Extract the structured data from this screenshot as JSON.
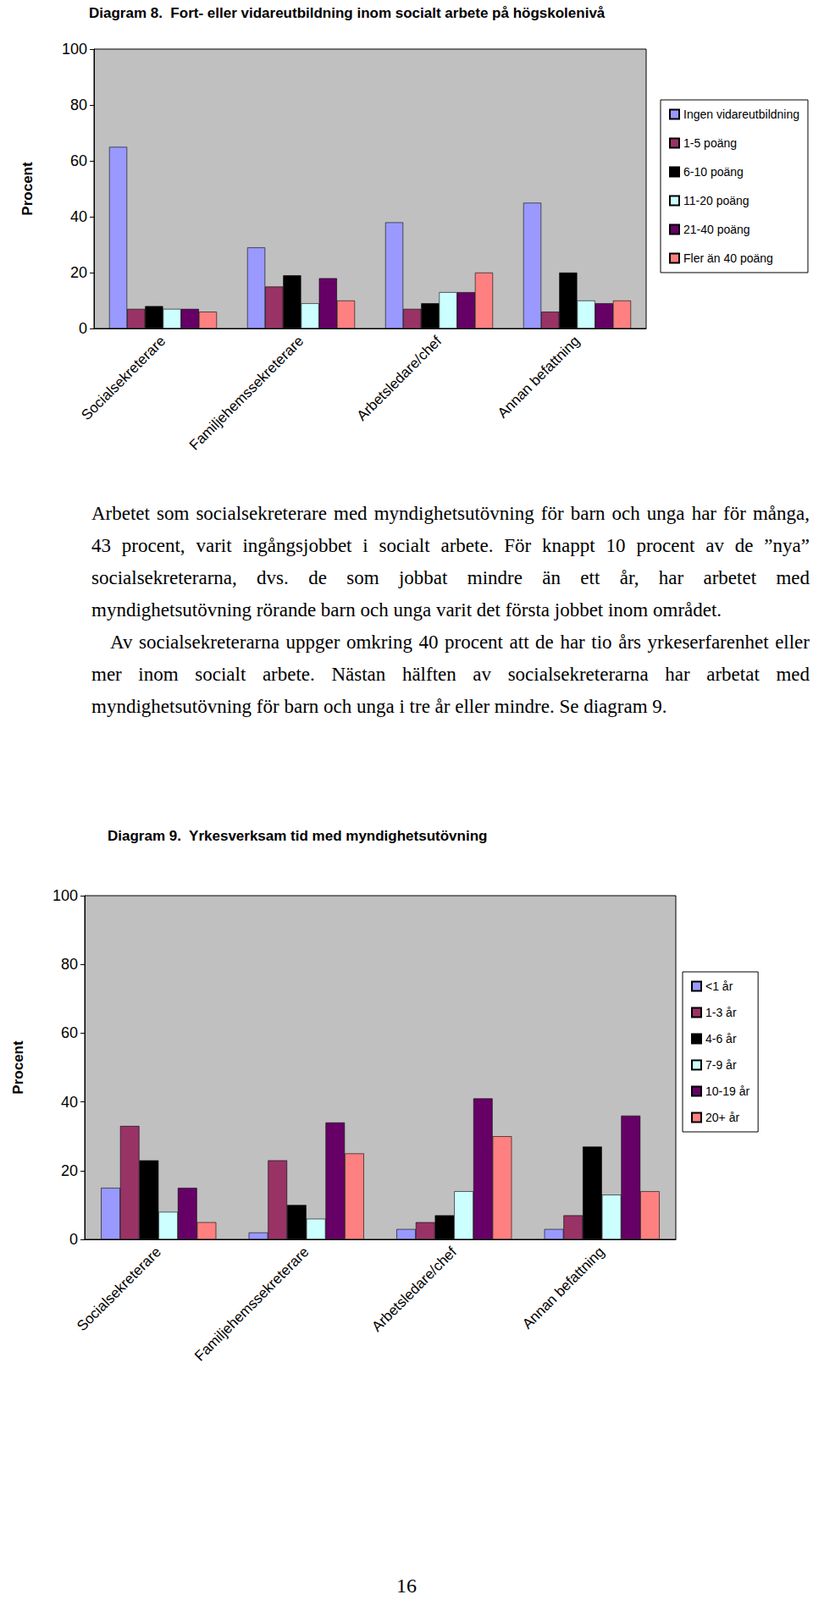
{
  "chart_data": [
    {
      "type": "bar",
      "title": "Diagram 8.  Fort- eller vidareutbildning inom socialt arbete på högskolenivå",
      "y_label": "Procent",
      "categories": [
        "Socialsekreterare",
        "Familjehemssekreterare",
        "Arbetsledare/chef",
        "Annan befattning"
      ],
      "series": [
        {
          "name": "Ingen vidareutbildning",
          "color": "#9999ff",
          "values": [
            65,
            29,
            38,
            45
          ]
        },
        {
          "name": "1-5 poäng",
          "color": "#993366",
          "values": [
            7,
            15,
            7,
            6
          ]
        },
        {
          "name": "6-10 poäng",
          "color": "#000000",
          "values": [
            8,
            19,
            9,
            20
          ]
        },
        {
          "name": "11-20 poäng",
          "color": "#ccffff",
          "values": [
            7,
            9,
            13,
            10
          ]
        },
        {
          "name": "21-40 poäng",
          "color": "#660066",
          "values": [
            7,
            18,
            13,
            9
          ]
        },
        {
          "name": "Fler än 40 poäng",
          "color": "#ff8080",
          "values": [
            6,
            10,
            20,
            10
          ]
        }
      ],
      "ylim": [
        0,
        100
      ],
      "yticks": [
        0,
        20,
        40,
        60,
        80,
        100
      ],
      "grid": false,
      "legend": "right"
    },
    {
      "type": "bar",
      "title": "Diagram 9.  Yrkesverksam tid med myndighetsutövning",
      "y_label": "Procent",
      "categories": [
        "Socialsekreterare",
        "Familjehemssekreterare",
        "Arbetsledare/chef",
        "Annan befattning"
      ],
      "series": [
        {
          "name": "<1 år",
          "color": "#9999ff",
          "values": [
            15,
            2,
            3,
            3
          ]
        },
        {
          "name": "1-3 år",
          "color": "#993366",
          "values": [
            33,
            23,
            5,
            7
          ]
        },
        {
          "name": "4-6 år",
          "color": "#000000",
          "values": [
            23,
            10,
            7,
            27
          ]
        },
        {
          "name": "7-9 år",
          "color": "#ccffff",
          "values": [
            8,
            6,
            14,
            13
          ]
        },
        {
          "name": "10-19 år",
          "color": "#660066",
          "values": [
            15,
            34,
            41,
            36
          ]
        },
        {
          "name": "20+ år",
          "color": "#ff8080",
          "values": [
            5,
            25,
            30,
            14
          ]
        }
      ],
      "ylim": [
        0,
        100
      ],
      "yticks": [
        0,
        20,
        40,
        60,
        80,
        100
      ],
      "grid": false,
      "legend": "right"
    }
  ],
  "paragraphs": [
    "Arbetet som socialsekreterare med myndighetsutövning för barn och unga har för många, 43 procent, varit ingångsjobbet i socialt arbete. För knappt 10 procent av de ”nya” socialsekreterarna, dvs. de som jobbat mindre än ett år, har arbetet med myndighetsutövning rörande barn och unga varit det första jobbet inom området.",
    "Av socialsekreterarna uppger omkring 40 procent att de har tio års yrkeserfarenhet eller mer inom socialt arbete. Nästan hälften av socialsekreterarna har arbetat med myndighetsutövning för barn och unga i tre år eller mindre. Se diagram 9."
  ],
  "page_number": 16
}
